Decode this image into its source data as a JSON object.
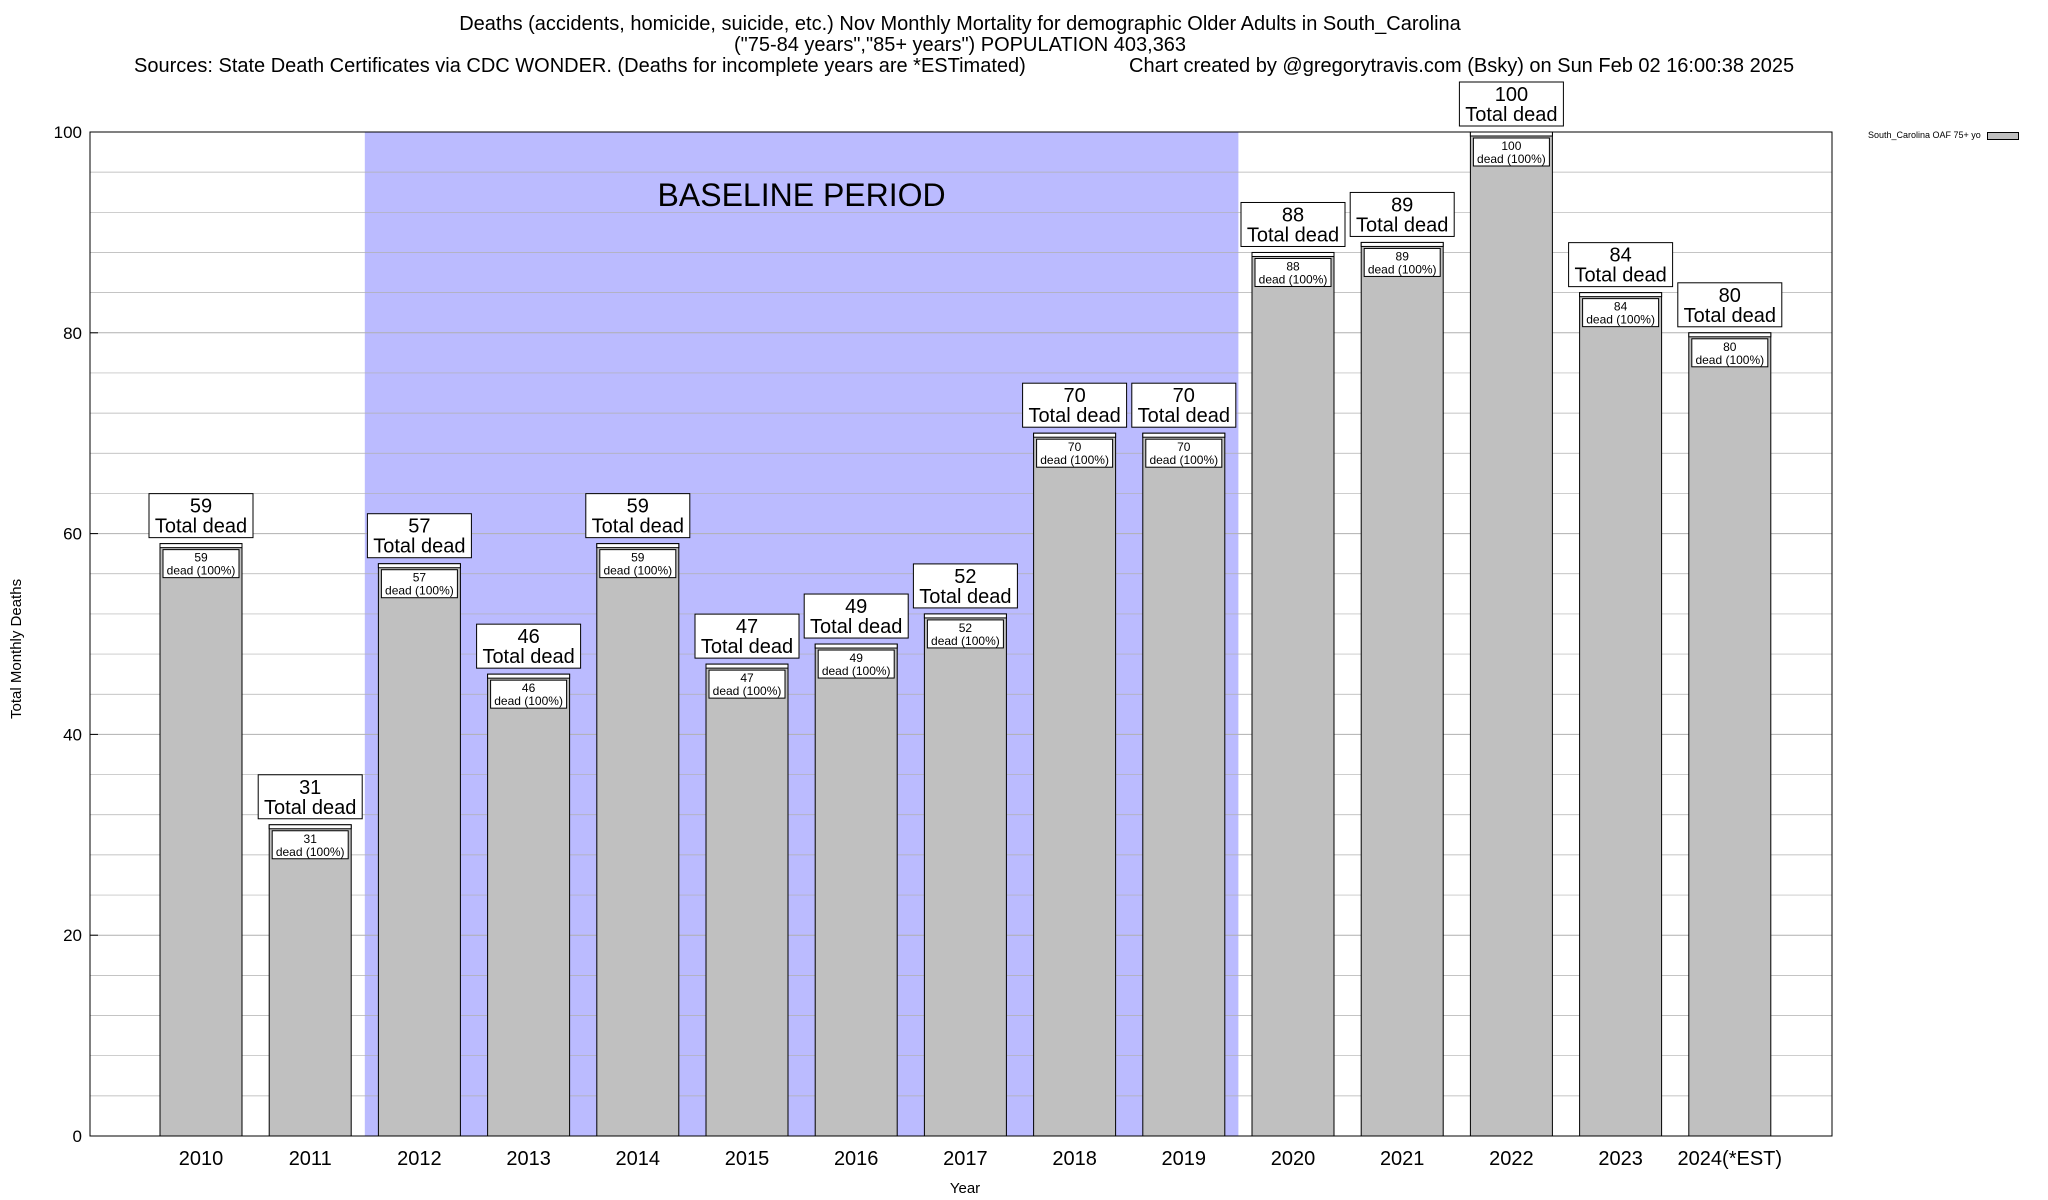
{
  "title": {
    "line1": "Deaths (accidents, homicide, suicide, etc.) Nov Monthly Mortality for demographic Older Adults in South_Carolina",
    "line2": "(\"75-84 years\",\"85+ years\") POPULATION 403,363",
    "line3": "Sources: State Death Certificates via CDC WONDER. (Deaths for incomplete years are *ESTimated)",
    "credit": "Chart created by @gregorytravis.com (Bsky) on Sun Feb 02 16:00:38 2025"
  },
  "chart_data": {
    "type": "bar",
    "title": "Deaths (accidents, homicide, suicide, etc.) Nov Monthly Mortality for demographic Older Adults in South_Carolina",
    "xlabel": "Year",
    "ylabel": "Total Monthly Deaths",
    "ylim": [
      0,
      100
    ],
    "yticks": [
      0,
      20,
      40,
      60,
      80,
      100
    ],
    "grid": true,
    "legend_position": "top-right",
    "categories": [
      "2010",
      "2011",
      "2012",
      "2013",
      "2014",
      "2015",
      "2016",
      "2017",
      "2018",
      "2019",
      "2020",
      "2021",
      "2022",
      "2023",
      "2024(*EST)"
    ],
    "series": [
      {
        "name": "South_Carolina OAF 75+ yo",
        "values": [
          59,
          31,
          57,
          46,
          59,
          47,
          49,
          52,
          70,
          70,
          88,
          89,
          100,
          84,
          80
        ]
      }
    ],
    "total_label_suffix": "Total dead",
    "inner_label_suffix": "dead (100%)",
    "baseline_period": {
      "label": "BASELINE PERIOD",
      "from": "2012",
      "to": "2019"
    },
    "colors": {
      "bar": "#c0c0c0",
      "baseline_shade": "#bbbbff",
      "grid": "#b0b0b0"
    }
  }
}
